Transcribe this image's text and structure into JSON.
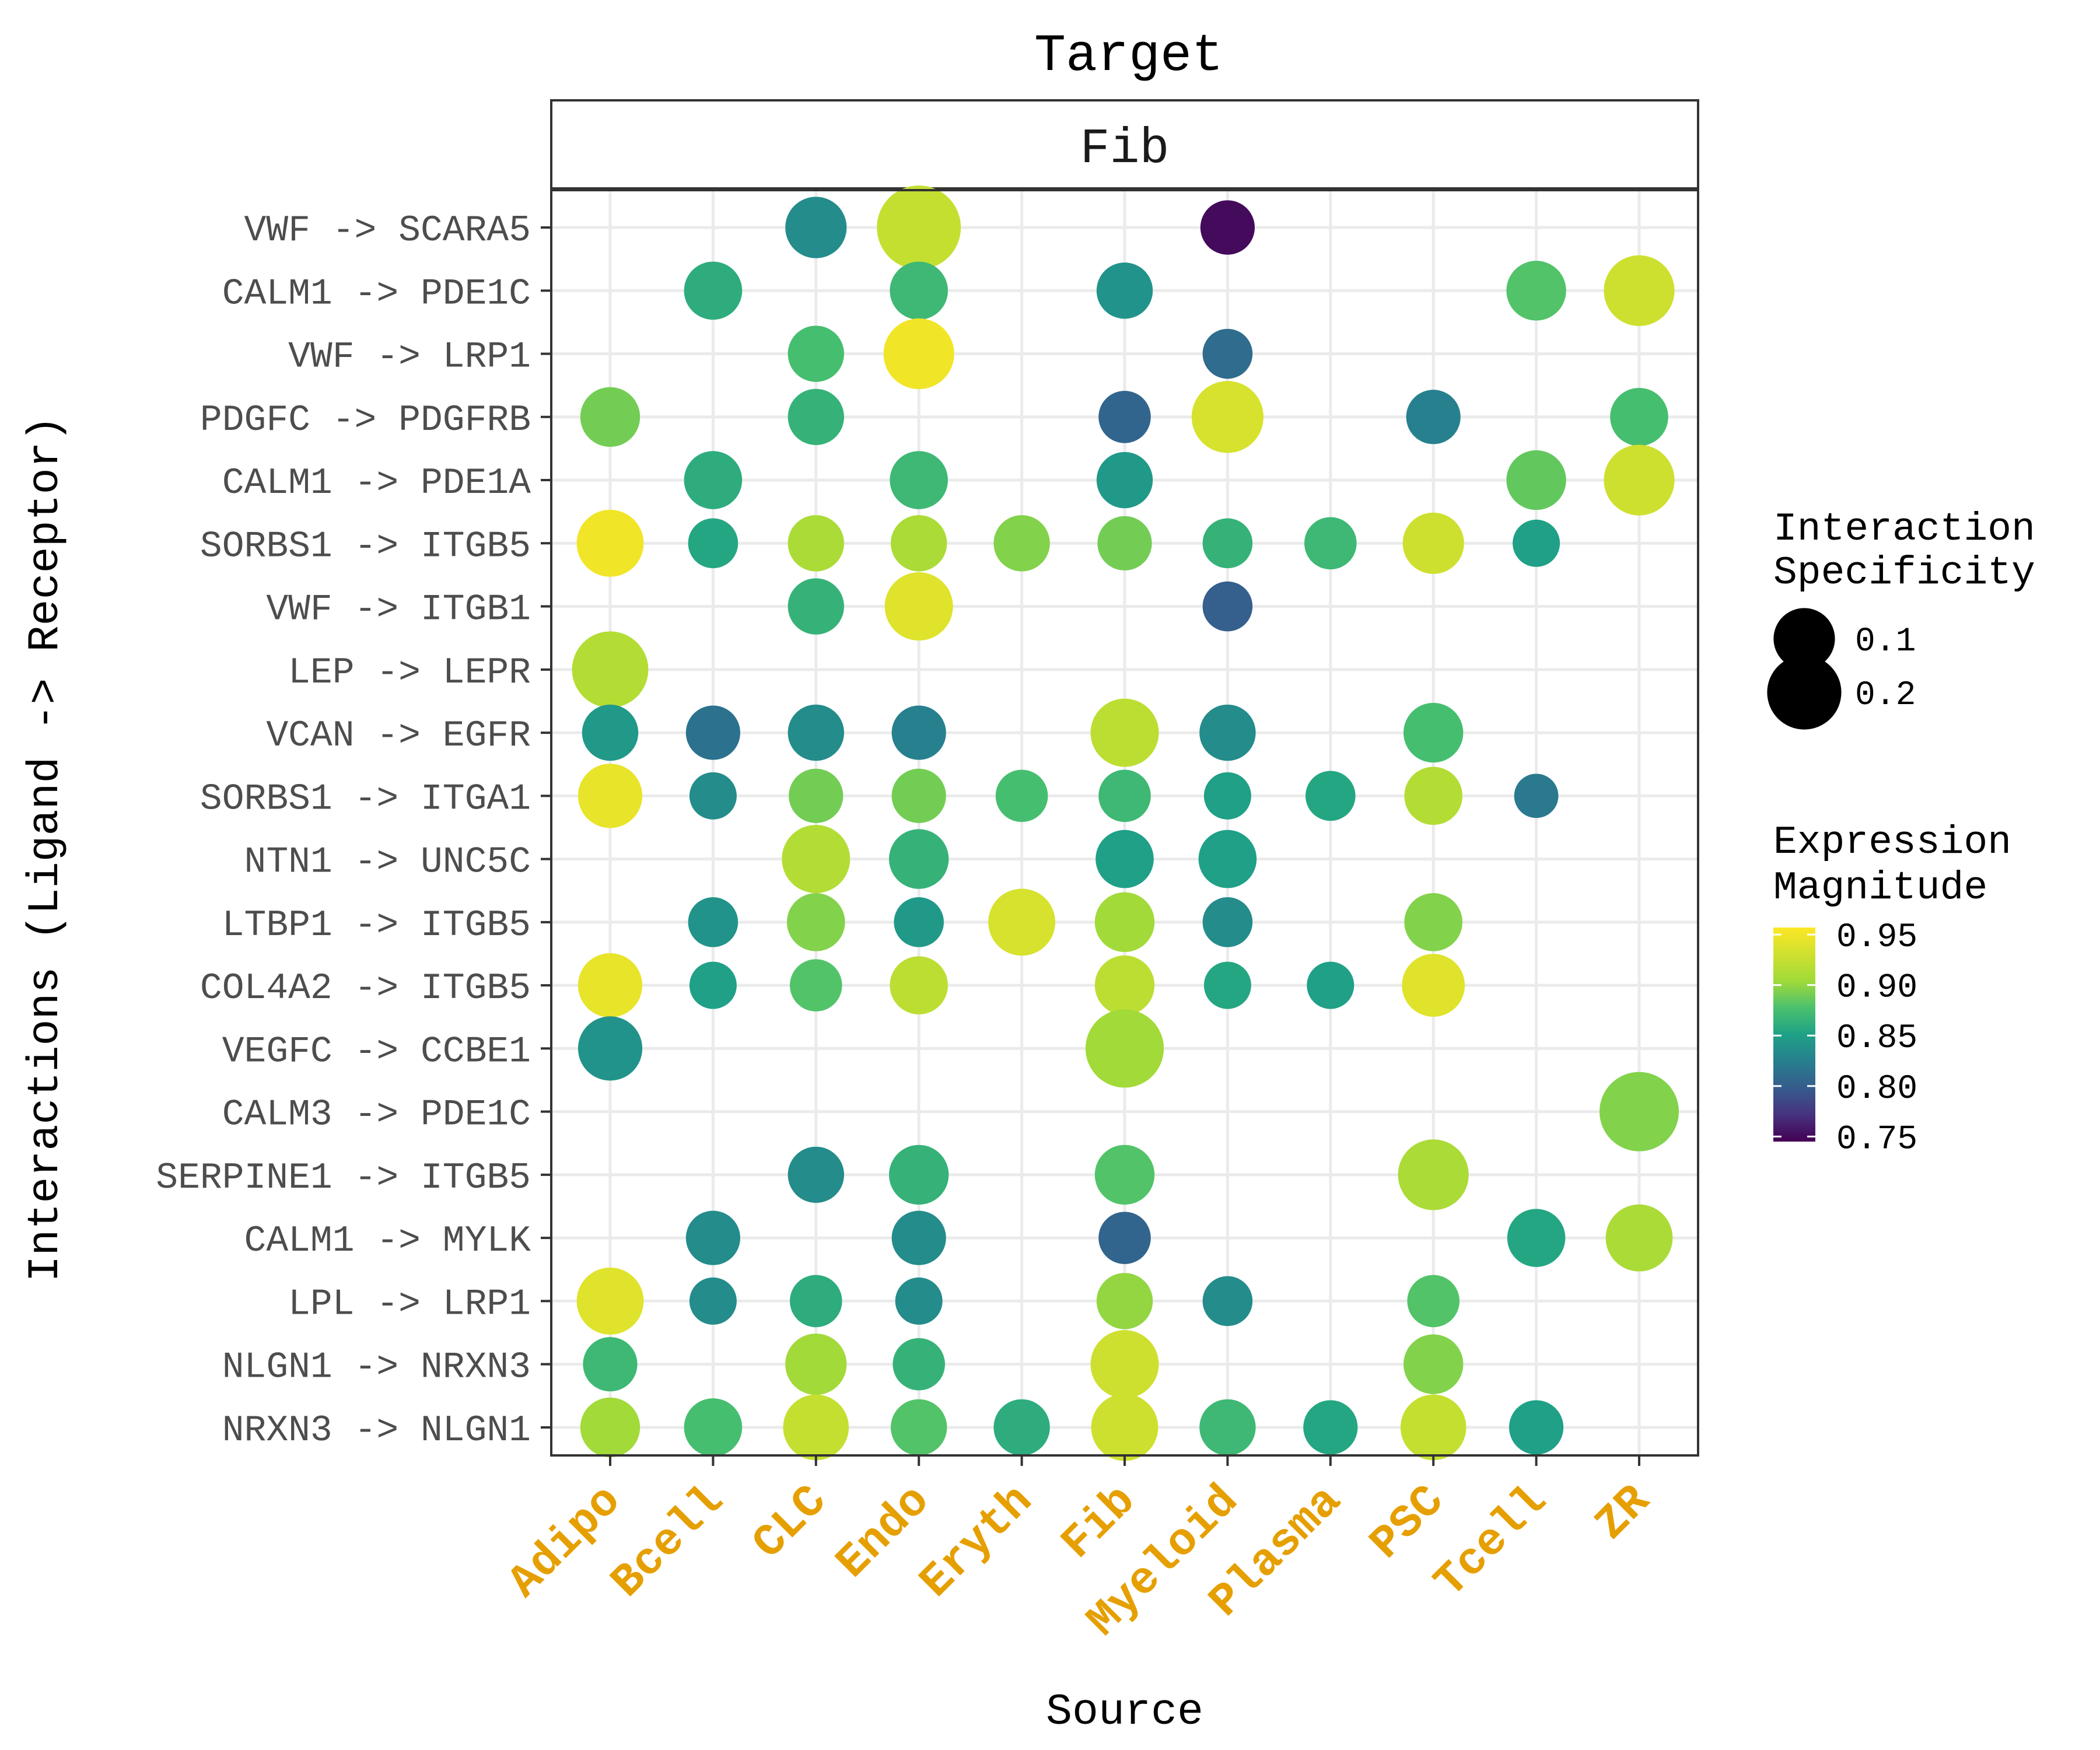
{
  "chart_data": {
    "type": "scatter",
    "title": "Target",
    "facet_label": "Fib",
    "xlabel": "Source",
    "ylabel": "Interactions (Ligand -> Receptor)",
    "x_categories": [
      "Adipo",
      "Bcell",
      "CLC",
      "Endo",
      "Eryth",
      "Fib",
      "Myeloid",
      "Plasma",
      "PSC",
      "Tcell",
      "ZR"
    ],
    "y_categories": [
      "VWF -> SCARA5",
      "CALM1 -> PDE1C",
      "VWF -> LRP1",
      "PDGFC -> PDGFRB",
      "CALM1 -> PDE1A",
      "SORBS1 -> ITGB5",
      "VWF -> ITGB1",
      "LEP -> LEPR",
      "VCAN -> EGFR",
      "SORBS1 -> ITGA1",
      "NTN1 -> UNC5C",
      "LTBP1 -> ITGB5",
      "COL4A2 -> ITGB5",
      "VEGFC -> CCBE1",
      "CALM3 -> PDE1C",
      "SERPINE1 -> ITGB5",
      "CALM1 -> MYLK",
      "LPL -> LRP1",
      "NLGN1 -> NRXN3",
      "NRXN3 -> NLGN1"
    ],
    "x_tick_color": "#E69F00",
    "grid": true,
    "legend_position": "right",
    "size_legend": {
      "title": [
        "Interaction",
        "Specificity"
      ],
      "breaks": [
        0.1,
        0.2
      ],
      "labels": [
        "0.1",
        "0.2"
      ]
    },
    "color_legend": {
      "title": [
        "Expression",
        "Magnitude"
      ],
      "breaks": [
        0.95,
        0.9,
        0.85,
        0.8,
        0.75
      ],
      "labels": [
        "0.95",
        "0.90",
        "0.85",
        "0.80",
        "0.75"
      ],
      "range": [
        0.745,
        0.957
      ],
      "colormap": "viridis"
    },
    "points": [
      {
        "y": "VWF -> SCARA5",
        "x": "CLC",
        "spec": 0.1,
        "mag": 0.835
      },
      {
        "y": "VWF -> SCARA5",
        "x": "Endo",
        "spec": 0.3,
        "mag": 0.925
      },
      {
        "y": "VWF -> SCARA5",
        "x": "Myeloid",
        "spec": 0.06,
        "mag": 0.75
      },
      {
        "y": "CALM1 -> PDE1C",
        "x": "Bcell",
        "spec": 0.08,
        "mag": 0.86
      },
      {
        "y": "CALM1 -> PDE1C",
        "x": "Endo",
        "spec": 0.08,
        "mag": 0.87
      },
      {
        "y": "CALM1 -> PDE1C",
        "x": "Fib",
        "spec": 0.07,
        "mag": 0.84
      },
      {
        "y": "CALM1 -> PDE1C",
        "x": "Tcell",
        "spec": 0.09,
        "mag": 0.88
      },
      {
        "y": "CALM1 -> PDE1C",
        "x": "ZR",
        "spec": 0.17,
        "mag": 0.93
      },
      {
        "y": "VWF -> LRP1",
        "x": "CLC",
        "spec": 0.07,
        "mag": 0.875
      },
      {
        "y": "VWF -> LRP1",
        "x": "Endo",
        "spec": 0.17,
        "mag": 0.95
      },
      {
        "y": "VWF -> LRP1",
        "x": "Myeloid",
        "spec": 0.04,
        "mag": 0.81
      },
      {
        "y": "PDGFC -> PDGFRB",
        "x": "Adipo",
        "spec": 0.09,
        "mag": 0.89
      },
      {
        "y": "PDGFC -> PDGFRB",
        "x": "CLC",
        "spec": 0.07,
        "mag": 0.865
      },
      {
        "y": "PDGFC -> PDGFRB",
        "x": "Fib",
        "spec": 0.05,
        "mag": 0.805
      },
      {
        "y": "PDGFC -> PDGFRB",
        "x": "Myeloid",
        "spec": 0.18,
        "mag": 0.935
      },
      {
        "y": "PDGFC -> PDGFRB",
        "x": "PSC",
        "spec": 0.06,
        "mag": 0.825
      },
      {
        "y": "PDGFC -> PDGFRB",
        "x": "ZR",
        "spec": 0.08,
        "mag": 0.875
      },
      {
        "y": "CALM1 -> PDE1A",
        "x": "Bcell",
        "spec": 0.08,
        "mag": 0.86
      },
      {
        "y": "CALM1 -> PDE1A",
        "x": "Endo",
        "spec": 0.08,
        "mag": 0.87
      },
      {
        "y": "CALM1 -> PDE1A",
        "x": "Fib",
        "spec": 0.07,
        "mag": 0.845
      },
      {
        "y": "CALM1 -> PDE1A",
        "x": "Tcell",
        "spec": 0.09,
        "mag": 0.885
      },
      {
        "y": "CALM1 -> PDE1A",
        "x": "ZR",
        "spec": 0.17,
        "mag": 0.93
      },
      {
        "y": "SORBS1 -> ITGB5",
        "x": "Adipo",
        "spec": 0.14,
        "mag": 0.95
      },
      {
        "y": "SORBS1 -> ITGB5",
        "x": "Bcell",
        "spec": 0.04,
        "mag": 0.855
      },
      {
        "y": "SORBS1 -> ITGB5",
        "x": "CLC",
        "spec": 0.07,
        "mag": 0.91
      },
      {
        "y": "SORBS1 -> ITGB5",
        "x": "Endo",
        "spec": 0.07,
        "mag": 0.91
      },
      {
        "y": "SORBS1 -> ITGB5",
        "x": "Eryth",
        "spec": 0.07,
        "mag": 0.895
      },
      {
        "y": "SORBS1 -> ITGB5",
        "x": "Fib",
        "spec": 0.06,
        "mag": 0.89
      },
      {
        "y": "SORBS1 -> ITGB5",
        "x": "Myeloid",
        "spec": 0.04,
        "mag": 0.865
      },
      {
        "y": "SORBS1 -> ITGB5",
        "x": "Plasma",
        "spec": 0.05,
        "mag": 0.87
      },
      {
        "y": "SORBS1 -> ITGB5",
        "x": "PSC",
        "spec": 0.1,
        "mag": 0.93
      },
      {
        "y": "SORBS1 -> ITGB5",
        "x": "Tcell",
        "spec": 0.03,
        "mag": 0.85
      },
      {
        "y": "VWF -> ITGB1",
        "x": "CLC",
        "spec": 0.07,
        "mag": 0.865
      },
      {
        "y": "VWF -> ITGB1",
        "x": "Endo",
        "spec": 0.15,
        "mag": 0.94
      },
      {
        "y": "VWF -> ITGB1",
        "x": "Myeloid",
        "spec": 0.04,
        "mag": 0.8
      },
      {
        "y": "LEP -> LEPR",
        "x": "Adipo",
        "spec": 0.22,
        "mag": 0.915
      },
      {
        "y": "VCAN -> EGFR",
        "x": "Adipo",
        "spec": 0.07,
        "mag": 0.845
      },
      {
        "y": "VCAN -> EGFR",
        "x": "Bcell",
        "spec": 0.06,
        "mag": 0.815
      },
      {
        "y": "VCAN -> EGFR",
        "x": "CLC",
        "spec": 0.07,
        "mag": 0.835
      },
      {
        "y": "VCAN -> EGFR",
        "x": "Endo",
        "spec": 0.06,
        "mag": 0.825
      },
      {
        "y": "VCAN -> EGFR",
        "x": "Fib",
        "spec": 0.15,
        "mag": 0.92
      },
      {
        "y": "VCAN -> EGFR",
        "x": "Myeloid",
        "spec": 0.07,
        "mag": 0.835
      },
      {
        "y": "VCAN -> EGFR",
        "x": "PSC",
        "spec": 0.09,
        "mag": 0.875
      },
      {
        "y": "SORBS1 -> ITGA1",
        "x": "Adipo",
        "spec": 0.12,
        "mag": 0.945
      },
      {
        "y": "SORBS1 -> ITGA1",
        "x": "Bcell",
        "spec": 0.03,
        "mag": 0.835
      },
      {
        "y": "SORBS1 -> ITGA1",
        "x": "CLC",
        "spec": 0.06,
        "mag": 0.89
      },
      {
        "y": "SORBS1 -> ITGA1",
        "x": "Endo",
        "spec": 0.06,
        "mag": 0.89
      },
      {
        "y": "SORBS1 -> ITGA1",
        "x": "Eryth",
        "spec": 0.05,
        "mag": 0.875
      },
      {
        "y": "SORBS1 -> ITGA1",
        "x": "Fib",
        "spec": 0.05,
        "mag": 0.87
      },
      {
        "y": "SORBS1 -> ITGA1",
        "x": "Myeloid",
        "spec": 0.03,
        "mag": 0.85
      },
      {
        "y": "SORBS1 -> ITGA1",
        "x": "Plasma",
        "spec": 0.04,
        "mag": 0.855
      },
      {
        "y": "SORBS1 -> ITGA1",
        "x": "PSC",
        "spec": 0.08,
        "mag": 0.915
      },
      {
        "y": "SORBS1 -> ITGA1",
        "x": "Tcell",
        "spec": 0.02,
        "mag": 0.82
      },
      {
        "y": "NTN1 -> UNC5C",
        "x": "CLC",
        "spec": 0.15,
        "mag": 0.915
      },
      {
        "y": "NTN1 -> UNC5C",
        "x": "Endo",
        "spec": 0.09,
        "mag": 0.865
      },
      {
        "y": "NTN1 -> UNC5C",
        "x": "Fib",
        "spec": 0.08,
        "mag": 0.85
      },
      {
        "y": "NTN1 -> UNC5C",
        "x": "Myeloid",
        "spec": 0.08,
        "mag": 0.85
      },
      {
        "y": "LTBP1 -> ITGB5",
        "x": "Bcell",
        "spec": 0.04,
        "mag": 0.84
      },
      {
        "y": "LTBP1 -> ITGB5",
        "x": "CLC",
        "spec": 0.08,
        "mag": 0.895
      },
      {
        "y": "LTBP1 -> ITGB5",
        "x": "Endo",
        "spec": 0.04,
        "mag": 0.845
      },
      {
        "y": "LTBP1 -> ITGB5",
        "x": "Eryth",
        "spec": 0.14,
        "mag": 0.935
      },
      {
        "y": "LTBP1 -> ITGB5",
        "x": "Fib",
        "spec": 0.09,
        "mag": 0.905
      },
      {
        "y": "LTBP1 -> ITGB5",
        "x": "Myeloid",
        "spec": 0.04,
        "mag": 0.835
      },
      {
        "y": "LTBP1 -> ITGB5",
        "x": "PSC",
        "spec": 0.08,
        "mag": 0.895
      },
      {
        "y": "COL4A2 -> ITGB5",
        "x": "Adipo",
        "spec": 0.12,
        "mag": 0.945
      },
      {
        "y": "COL4A2 -> ITGB5",
        "x": "Bcell",
        "spec": 0.03,
        "mag": 0.85
      },
      {
        "y": "COL4A2 -> ITGB5",
        "x": "CLC",
        "spec": 0.05,
        "mag": 0.88
      },
      {
        "y": "COL4A2 -> ITGB5",
        "x": "Endo",
        "spec": 0.08,
        "mag": 0.92
      },
      {
        "y": "COL4A2 -> ITGB5",
        "x": "Fib",
        "spec": 0.09,
        "mag": 0.92
      },
      {
        "y": "COL4A2 -> ITGB5",
        "x": "Myeloid",
        "spec": 0.03,
        "mag": 0.855
      },
      {
        "y": "COL4A2 -> ITGB5",
        "x": "Plasma",
        "spec": 0.03,
        "mag": 0.85
      },
      {
        "y": "COL4A2 -> ITGB5",
        "x": "PSC",
        "spec": 0.11,
        "mag": 0.94
      },
      {
        "y": "VEGFC -> CCBE1",
        "x": "Adipo",
        "spec": 0.12,
        "mag": 0.84
      },
      {
        "y": "VEGFC -> CCBE1",
        "x": "Fib",
        "spec": 0.24,
        "mag": 0.905
      },
      {
        "y": "CALM3 -> PDE1C",
        "x": "ZR",
        "spec": 0.25,
        "mag": 0.895
      },
      {
        "y": "SERPINE1 -> ITGB5",
        "x": "CLC",
        "spec": 0.07,
        "mag": 0.835
      },
      {
        "y": "SERPINE1 -> ITGB5",
        "x": "Endo",
        "spec": 0.09,
        "mag": 0.865
      },
      {
        "y": "SERPINE1 -> ITGB5",
        "x": "Fib",
        "spec": 0.09,
        "mag": 0.88
      },
      {
        "y": "SERPINE1 -> ITGB5",
        "x": "PSC",
        "spec": 0.17,
        "mag": 0.91
      },
      {
        "y": "CALM1 -> MYLK",
        "x": "Bcell",
        "spec": 0.06,
        "mag": 0.835
      },
      {
        "y": "CALM1 -> MYLK",
        "x": "Endo",
        "spec": 0.06,
        "mag": 0.835
      },
      {
        "y": "CALM1 -> MYLK",
        "x": "Fib",
        "spec": 0.05,
        "mag": 0.805
      },
      {
        "y": "CALM1 -> MYLK",
        "x": "Tcell",
        "spec": 0.08,
        "mag": 0.855
      },
      {
        "y": "CALM1 -> MYLK",
        "x": "ZR",
        "spec": 0.14,
        "mag": 0.91
      },
      {
        "y": "LPL -> LRP1",
        "x": "Adipo",
        "spec": 0.14,
        "mag": 0.94
      },
      {
        "y": "LPL -> LRP1",
        "x": "Bcell",
        "spec": 0.03,
        "mag": 0.835
      },
      {
        "y": "LPL -> LRP1",
        "x": "CLC",
        "spec": 0.05,
        "mag": 0.86
      },
      {
        "y": "LPL -> LRP1",
        "x": "Endo",
        "spec": 0.03,
        "mag": 0.835
      },
      {
        "y": "LPL -> LRP1",
        "x": "Fib",
        "spec": 0.07,
        "mag": 0.9
      },
      {
        "y": "LPL -> LRP1",
        "x": "Myeloid",
        "spec": 0.04,
        "mag": 0.835
      },
      {
        "y": "LPL -> LRP1",
        "x": "PSC",
        "spec": 0.05,
        "mag": 0.88
      },
      {
        "y": "NLGN1 -> NRXN3",
        "x": "Adipo",
        "spec": 0.06,
        "mag": 0.87
      },
      {
        "y": "NLGN1 -> NRXN3",
        "x": "CLC",
        "spec": 0.1,
        "mag": 0.905
      },
      {
        "y": "NLGN1 -> NRXN3",
        "x": "Endo",
        "spec": 0.05,
        "mag": 0.865
      },
      {
        "y": "NLGN1 -> NRXN3",
        "x": "Fib",
        "spec": 0.15,
        "mag": 0.93
      },
      {
        "y": "NLGN1 -> NRXN3",
        "x": "PSC",
        "spec": 0.09,
        "mag": 0.895
      },
      {
        "y": "NRXN3 -> NLGN1",
        "x": "Adipo",
        "spec": 0.09,
        "mag": 0.905
      },
      {
        "y": "NRXN3 -> NLGN1",
        "x": "Bcell",
        "spec": 0.08,
        "mag": 0.875
      },
      {
        "y": "NRXN3 -> NLGN1",
        "x": "CLC",
        "spec": 0.13,
        "mag": 0.925
      },
      {
        "y": "NRXN3 -> NLGN1",
        "x": "Endo",
        "spec": 0.07,
        "mag": 0.88
      },
      {
        "y": "NRXN3 -> NLGN1",
        "x": "Eryth",
        "spec": 0.07,
        "mag": 0.86
      },
      {
        "y": "NRXN3 -> NLGN1",
        "x": "Fib",
        "spec": 0.14,
        "mag": 0.93
      },
      {
        "y": "NRXN3 -> NLGN1",
        "x": "Myeloid",
        "spec": 0.07,
        "mag": 0.87
      },
      {
        "y": "NRXN3 -> NLGN1",
        "x": "Plasma",
        "spec": 0.06,
        "mag": 0.855
      },
      {
        "y": "NRXN3 -> NLGN1",
        "x": "PSC",
        "spec": 0.13,
        "mag": 0.925
      },
      {
        "y": "NRXN3 -> NLGN1",
        "x": "Tcell",
        "spec": 0.06,
        "mag": 0.85
      }
    ]
  }
}
